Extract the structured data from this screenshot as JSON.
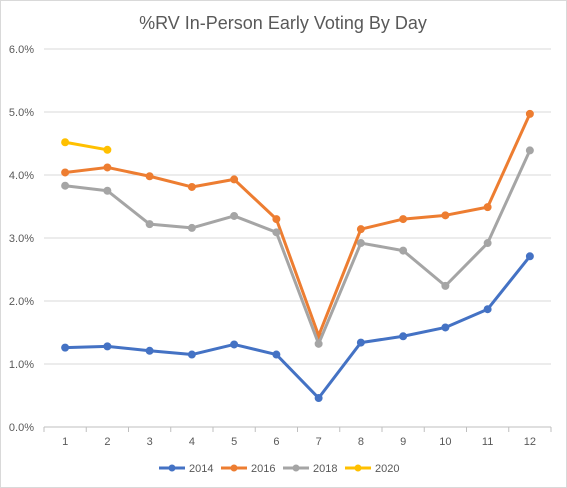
{
  "chart_data": {
    "type": "line",
    "title": "%RV In-Person Early Voting By Day",
    "xlabel": "",
    "ylabel": "",
    "x": [
      1,
      2,
      3,
      4,
      5,
      6,
      7,
      8,
      9,
      10,
      11,
      12
    ],
    "x_tick_labels": [
      "1",
      "2",
      "3",
      "4",
      "5",
      "6",
      "7",
      "8",
      "9",
      "10",
      "11",
      "12"
    ],
    "ylim": [
      0,
      6.0
    ],
    "y_ticks": [
      0,
      1,
      2,
      3,
      4,
      5,
      6
    ],
    "y_tick_labels": [
      "0.0%",
      "1.0%",
      "2.0%",
      "3.0%",
      "4.0%",
      "5.0%",
      "6.0%"
    ],
    "grid": true,
    "legend_position": "bottom",
    "series": [
      {
        "name": "2014",
        "color": "#4472c4",
        "values": [
          1.26,
          1.28,
          1.21,
          1.15,
          1.31,
          1.15,
          0.46,
          1.34,
          1.44,
          1.58,
          1.87,
          2.71
        ]
      },
      {
        "name": "2016",
        "color": "#ed7d31",
        "values": [
          4.04,
          4.12,
          3.98,
          3.81,
          3.93,
          3.3,
          1.45,
          3.14,
          3.3,
          3.36,
          3.49,
          4.97
        ]
      },
      {
        "name": "2018",
        "color": "#a5a5a5",
        "values": [
          3.83,
          3.75,
          3.22,
          3.16,
          3.35,
          3.09,
          1.32,
          2.92,
          2.8,
          2.24,
          2.92,
          4.39
        ]
      },
      {
        "name": "2020",
        "color": "#ffc000",
        "values": [
          4.52,
          4.4,
          null,
          null,
          null,
          null,
          null,
          null,
          null,
          null,
          null,
          null
        ]
      }
    ]
  }
}
